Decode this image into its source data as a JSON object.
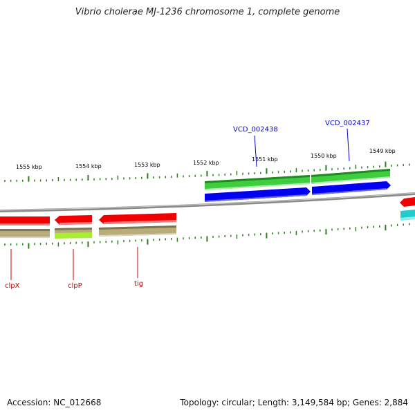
{
  "title": "Vibrio cholerae MJ-1236 chromosome 1, complete genome",
  "footer": {
    "accession": "Accession: NC_012668",
    "topology": "Topology: circular; Length: 3,149,584 bp; Genes: 2,884"
  },
  "scale_labels": [
    "1555 kbp",
    "1554 kbp",
    "1553 kbp",
    "1552 kbp",
    "1551 kbp",
    "1550 kbp",
    "1549 kbp"
  ],
  "gene_labels": {
    "clpX": "clpX",
    "clpP": "clpP",
    "tig": "tig",
    "vcd_002438": "VCD_002438",
    "vcd_002437": "VCD_002437"
  },
  "colors": {
    "backbone": "#8a8a8a",
    "tick": "#2e7d1e",
    "cds_reverse": "#ee0000",
    "cds_forward_green": "#3fcc3f",
    "cds_forward_blue": "#0000ee",
    "gene_track": "#b8ad7a",
    "gene_highlight": "#aaee33",
    "partial_cyan": "#22cccc",
    "label_red": "#cc0000",
    "label_blue": "#0000cc"
  }
}
